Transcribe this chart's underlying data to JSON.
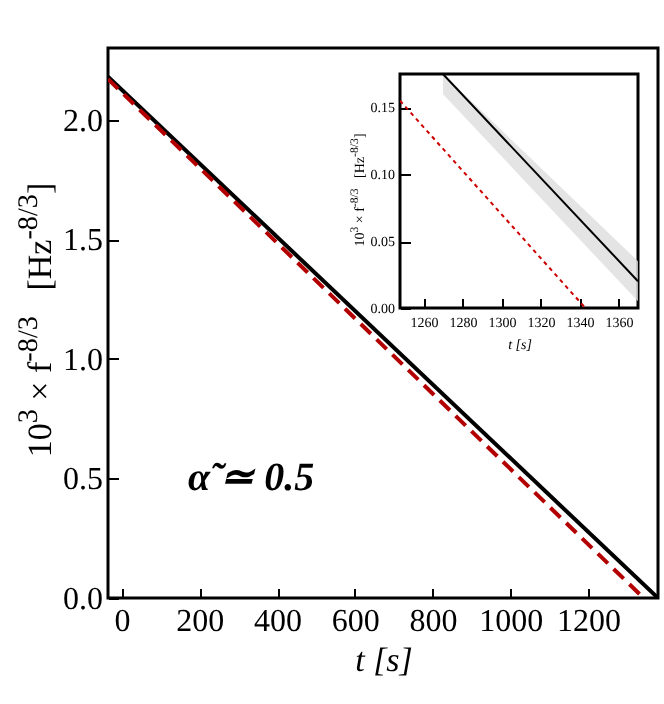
{
  "chart_data": [
    {
      "type": "line",
      "xlabel": "t   [s]",
      "ylabel": "10$^{3}$ × f$^{-8/3}$   [Hz$^{-8/3}$]",
      "annotations": [
        "α̃ ≃ 0.5"
      ],
      "xlim": [
        -35,
        1380
      ],
      "ylim": [
        0,
        2.3
      ],
      "xticks": [
        0,
        200,
        400,
        600,
        800,
        1000,
        1200
      ],
      "yticks": [
        {
          "value": 0,
          "label": "0.0"
        },
        {
          "value": 0.5,
          "label": "0.5"
        },
        {
          "value": 1,
          "label": "1.0"
        },
        {
          "value": 1.5,
          "label": "1.5"
        },
        {
          "value": 2,
          "label": "2.0"
        }
      ],
      "grid": false,
      "series": [
        {
          "color": "#000000",
          "line_style": "solid",
          "x": [
            -35,
            1380
          ],
          "values": [
            2.18,
            0.0
          ]
        },
        {
          "color": "#b30000",
          "line_style": "dashed",
          "x": [
            -35,
            1343
          ],
          "values": [
            2.17,
            0.0
          ]
        }
      ]
    },
    {
      "type": "line",
      "xlabel": "t   [s]",
      "ylabel": "10$^{3}$ × f$^{-8/3}$   [Hz$^{-8/3}$]",
      "xlim": [
        1248,
        1370
      ],
      "ylim": [
        0,
        0.175
      ],
      "xticks": [
        1260,
        1280,
        1300,
        1320,
        1340,
        1360
      ],
      "yticks": [
        {
          "value": 0,
          "label": "0.00"
        },
        {
          "value": 0.05,
          "label": "0.05"
        },
        {
          "value": 0.1,
          "label": "0.10"
        },
        {
          "value": 0.15,
          "label": "0.15"
        }
      ],
      "grid": false,
      "series": [
        {
          "color": "#000000",
          "line_style": "solid",
          "x": [
            1270,
            1370
          ],
          "values": [
            0.175,
            0.02
          ],
          "lower": [
            0.16,
            0.005
          ],
          "upper": [
            0.175,
            0.035
          ]
        },
        {
          "color": "#cc0000",
          "line_style": "dotted",
          "x": [
            1248,
            1343
          ],
          "values": [
            0.155,
            0.0
          ]
        }
      ]
    }
  ]
}
